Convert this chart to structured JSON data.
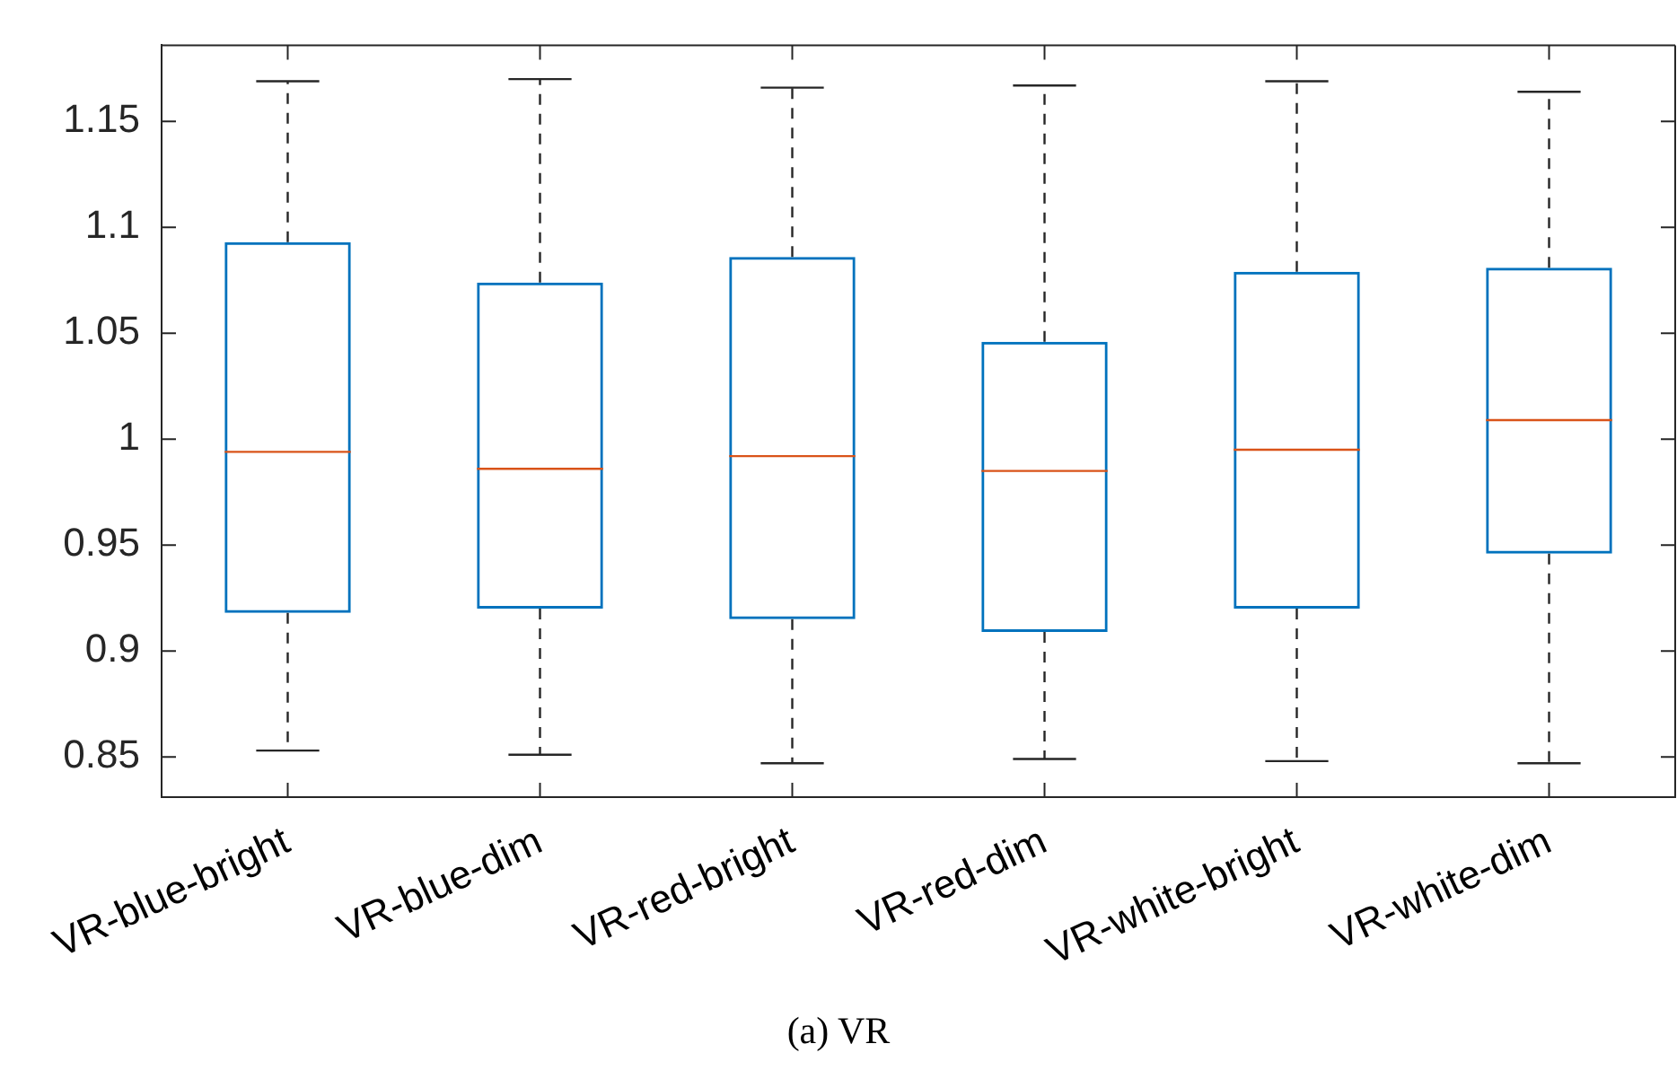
{
  "chart_data": {
    "type": "box",
    "title": "(a) VR",
    "categories": [
      "VR-blue-bright",
      "VR-blue-dim",
      "VR-red-bright",
      "VR-red-dim",
      "VR-white-bright",
      "VR-white-dim"
    ],
    "series": [
      {
        "color": "#0072bd",
        "boxes": [
          {
            "low": 0.853,
            "q1": 0.918,
            "median": 0.994,
            "q3": 1.093,
            "high": 1.169
          },
          {
            "low": 0.851,
            "q1": 0.92,
            "median": 0.986,
            "q3": 1.074,
            "high": 1.17
          },
          {
            "low": 0.847,
            "q1": 0.915,
            "median": 0.992,
            "q3": 1.086,
            "high": 1.166
          },
          {
            "low": 0.849,
            "q1": 0.909,
            "median": 0.985,
            "q3": 1.046,
            "high": 1.167
          },
          {
            "low": 0.848,
            "q1": 0.92,
            "median": 0.995,
            "q3": 1.079,
            "high": 1.169
          },
          {
            "low": 0.847,
            "q1": 0.946,
            "median": 1.009,
            "q3": 1.081,
            "high": 1.164
          }
        ]
      }
    ],
    "ylim": [
      0.831,
      1.186
    ],
    "yticks": [
      0.85,
      0.9,
      0.95,
      1,
      1.05,
      1.1,
      1.15
    ],
    "grid": false
  }
}
